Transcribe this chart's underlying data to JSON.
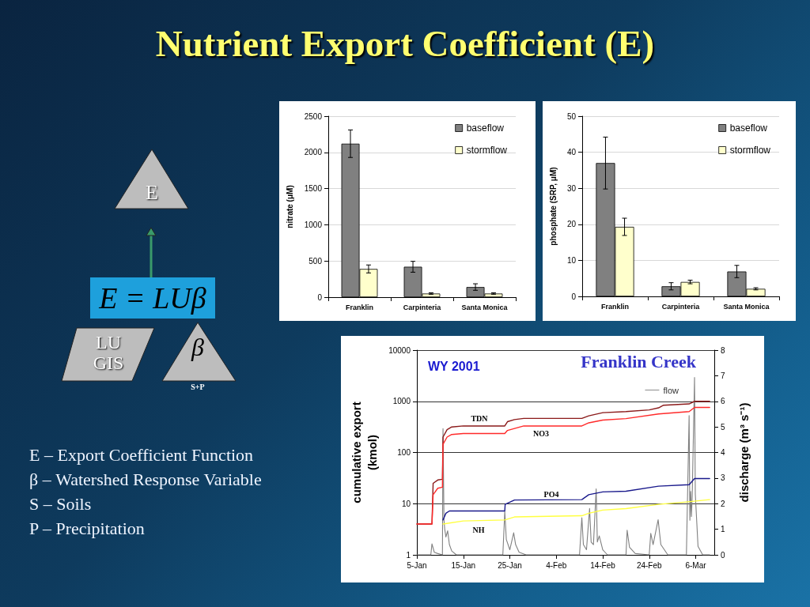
{
  "chart_data": [
    {
      "type": "other",
      "title": "Nutrient Export Coefficient (E)",
      "annotations": [
        "E",
        "E = LUβ",
        "LU GIS",
        "β",
        "S+P",
        "E – Export Coefficient Function",
        "β – Watershed Response Variable",
        "S – Soils",
        "P – Precipitation"
      ]
    },
    {
      "type": "bar",
      "ylabel": "nitrate (μM)",
      "categories": [
        "Franklin",
        "Carpinteria",
        "Santa Monica"
      ],
      "series": [
        {
          "name": "baseflow",
          "color": "#808080",
          "values": [
            2120,
            420,
            140
          ],
          "errors": [
            190,
            75,
            45
          ]
        },
        {
          "name": "stormflow",
          "color": "#ffffcc",
          "values": [
            390,
            50,
            50
          ],
          "errors": [
            55,
            10,
            10
          ]
        }
      ],
      "ylim": [
        0,
        2500
      ],
      "yticks": [
        0,
        500,
        1000,
        1500,
        2000,
        2500
      ],
      "grid": "y",
      "legend": "top right"
    },
    {
      "type": "bar",
      "ylabel": "phosphate (SRP, μM)",
      "categories": [
        "Franklin",
        "Carpinteria",
        "Santa Monica"
      ],
      "series": [
        {
          "name": "baseflow",
          "color": "#808080",
          "values": [
            37,
            2.8,
            6.9
          ],
          "errors": [
            7.2,
            1,
            1.7
          ]
        },
        {
          "name": "stormflow",
          "color": "#ffffcc",
          "values": [
            19.3,
            4,
            2.1
          ],
          "errors": [
            2.4,
            0.5,
            0.3
          ]
        }
      ],
      "ylim": [
        0,
        50
      ],
      "yticks": [
        0,
        10,
        20,
        30,
        40,
        50
      ],
      "grid": "y",
      "legend": "top right"
    },
    {
      "type": "line",
      "title": "Franklin Creek",
      "ylabel": "cumulative export\n(kmol)",
      "y2label": "discharge (m³ s⁻¹)",
      "annotations": [
        "WY 2001",
        "TDN",
        "NO3",
        "PO4",
        "NH"
      ],
      "series": [
        {
          "color": "#8b1a1a",
          "x": [
            "2001-01-05",
            "2001-01-08T06:00",
            "2001-01-08T12:00",
            "2001-01-09T12:00",
            "2001-01-10T12:00",
            "2001-01-10T15:00",
            "2001-01-11T12:00",
            "2001-01-12T12:00",
            "2001-01-15",
            "2001-01-23T22:00",
            "2001-01-24T12:00",
            "2001-01-26",
            "2001-01-28",
            "2001-02-09T12:00",
            "2001-02-11",
            "2001-02-14",
            "2001-02-19",
            "2001-02-24",
            "2001-02-26",
            "2001-02-27",
            "2001-03-04T14:00",
            "2001-03-05T18:00",
            "2001-03-09"
          ],
          "values": [
            4,
            4,
            25,
            29,
            30,
            200,
            280,
            315,
            330,
            330,
            400,
            440,
            464,
            464,
            520,
            600,
            630,
            680,
            745,
            835,
            890,
            1000,
            1000
          ]
        },
        {
          "color": "#ff2a2a",
          "x": [
            "2001-01-05",
            "2001-01-08T06:00",
            "2001-01-08T12:00",
            "2001-01-09T12:00",
            "2001-01-10T12:00",
            "2001-01-10T15:00",
            "2001-01-11T12:00",
            "2001-01-12T12:00",
            "2001-01-15",
            "2001-01-23T22:00",
            "2001-01-24T12:00",
            "2001-01-28",
            "2001-02-09T12:00",
            "2001-02-11",
            "2001-02-14",
            "2001-02-19",
            "2001-02-26",
            "2001-03-04T14:00",
            "2001-03-05T18:00",
            "2001-03-09"
          ],
          "values": [
            4,
            4,
            15,
            20,
            21,
            145,
            200,
            225,
            235,
            235,
            270,
            330,
            330,
            380,
            430,
            460,
            565,
            630,
            760,
            760
          ]
        },
        {
          "color": "#1a1a8c",
          "x": [
            "2001-01-10T15:00",
            "2001-01-11T06:00",
            "2001-01-12",
            "2001-01-23T22:00",
            "2001-01-24",
            "2001-01-26",
            "2001-02-09T12:00",
            "2001-02-11",
            "2001-02-14",
            "2001-02-19",
            "2001-02-26",
            "2001-03-04T14:00",
            "2001-03-05T18:00",
            "2001-03-09"
          ],
          "values": [
            4.8,
            6.5,
            7.2,
            7.2,
            9.7,
            11.8,
            12,
            15,
            17,
            17.5,
            22,
            23.5,
            31,
            31
          ]
        },
        {
          "color": "#ffff40",
          "x": [
            "2001-01-10T15:00",
            "2001-01-15",
            "2001-01-23T22:00",
            "2001-01-26",
            "2001-02-09T12:00",
            "2001-02-11",
            "2001-02-14",
            "2001-02-19",
            "2001-02-26",
            "2001-03-04",
            "2001-03-09"
          ],
          "values": [
            4,
            4.6,
            4.8,
            5.5,
            5.8,
            6.5,
            7.5,
            8,
            9.7,
            10.8,
            12
          ]
        },
        {
          "name": "flow",
          "color": "#808080",
          "axis": "y2",
          "x": [
            "2001-01-05",
            "2001-01-08",
            "2001-01-08T06:00",
            "2001-01-08T18:00",
            "2001-01-09T12:00",
            "2001-01-10T12:00",
            "2001-01-10T15:00",
            "2001-01-10T20:00",
            "2001-01-11",
            "2001-01-11T06:00",
            "2001-01-11T15:00",
            "2001-01-12",
            "2001-01-12T12:00",
            "2001-01-13T12:00",
            "2001-01-23T12:00",
            "2001-01-23T22:00",
            "2001-01-24T06:00",
            "2001-01-25",
            "2001-01-25T20:00",
            "2001-01-26T06:00",
            "2001-01-27",
            "2001-01-28T12:00",
            "2001-02-09",
            "2001-02-09T12:00",
            "2001-02-09T20:00",
            "2001-02-10T12:00",
            "2001-02-11T04:00",
            "2001-02-11T12:00",
            "2001-02-12",
            "2001-02-12T14:00",
            "2001-02-12T20:00",
            "2001-02-13T06:00",
            "2001-02-14",
            "2001-02-15",
            "2001-02-19",
            "2001-02-19T06:00",
            "2001-02-19T18:00",
            "2001-02-21",
            "2001-02-24",
            "2001-02-24T08:00",
            "2001-02-24T20:00",
            "2001-02-25T22:00",
            "2001-02-26T12:00",
            "2001-02-28",
            "2001-03-04",
            "2001-03-04T14:00",
            "2001-03-04T18:00",
            "2001-03-04T22:00",
            "2001-03-05T02:00",
            "2001-03-05T06:00",
            "2001-03-05T18:00",
            "2001-03-05T22:00",
            "2001-03-06T12:00",
            "2001-03-07T12:00",
            "2001-03-09"
          ],
          "values": [
            0,
            0,
            0.43,
            0.1,
            0.05,
            0,
            4.93,
            1.35,
            1,
            0.7,
            0.94,
            0.4,
            0.15,
            0,
            0,
            1.7,
            0.6,
            0.2,
            0.86,
            0.4,
            0.1,
            0,
            0,
            1.45,
            0.4,
            0.2,
            1.81,
            0.5,
            0.4,
            2.58,
            0.5,
            0.74,
            0.2,
            0,
            0,
            0.96,
            0.3,
            0.05,
            0,
            0.84,
            0.4,
            1.37,
            0.4,
            0,
            0,
            5.44,
            1.35,
            2.48,
            1.5,
            2.3,
            6.93,
            2.37,
            0.33,
            0,
            0
          ]
        }
      ],
      "xlim": [
        "2001-01-05",
        "2001-03-10"
      ],
      "xticks": [
        {
          "value": "2001-01-05",
          "label": "5-Jan"
        },
        {
          "value": "2001-01-15",
          "label": "15-Jan"
        },
        {
          "value": "2001-01-25",
          "label": "25-Jan"
        },
        {
          "value": "2001-02-04",
          "label": "4-Feb"
        },
        {
          "value": "2001-02-14",
          "label": "14-Feb"
        },
        {
          "value": "2001-02-24",
          "label": "24-Feb"
        },
        {
          "value": "2001-03-06",
          "label": "6-Mar"
        }
      ],
      "ylim": [
        1,
        10000
      ],
      "yticks": [
        1,
        10,
        100,
        1000,
        10000
      ],
      "y2lim": [
        0,
        8
      ],
      "y2ticks": [
        0,
        1,
        2,
        3,
        4,
        5,
        6,
        7,
        8
      ],
      "log": "y",
      "grid": "y",
      "legend": "top right",
      "marker": "none",
      "line_style": "solid"
    }
  ]
}
